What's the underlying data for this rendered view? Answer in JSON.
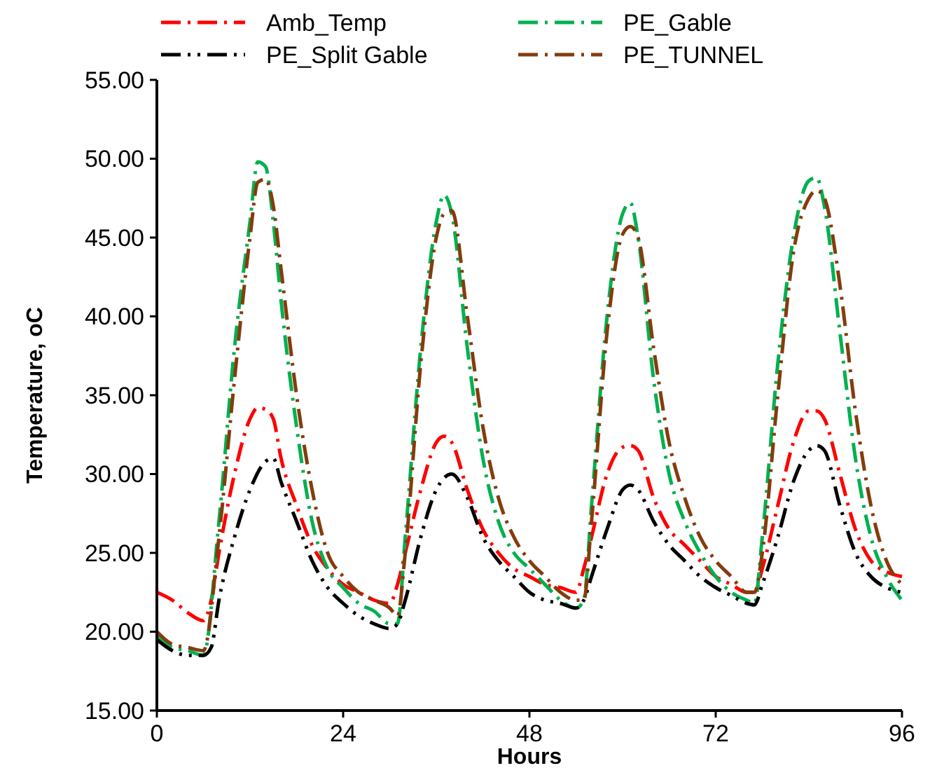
{
  "chart_data": {
    "type": "line",
    "xlabel": "Hours",
    "ylabel": "Temperature, oC",
    "xlim": [
      0,
      96
    ],
    "xticks": [
      0,
      24,
      48,
      72,
      96
    ],
    "ylim": [
      15,
      55
    ],
    "yticks": [
      {
        "value": 15,
        "label": "15.00"
      },
      {
        "value": 20,
        "label": "20.00"
      },
      {
        "value": 25,
        "label": "25.00"
      },
      {
        "value": 30,
        "label": "30.00"
      },
      {
        "value": 35,
        "label": "35.00"
      },
      {
        "value": 40,
        "label": "40.00"
      },
      {
        "value": 45,
        "label": "45.00"
      },
      {
        "value": 50,
        "label": "50.00"
      },
      {
        "value": 55,
        "label": "55.00"
      }
    ],
    "grid": false,
    "legend": "top",
    "marker": "none",
    "line_style": "dashed",
    "series": [
      {
        "name": "Amb_Temp",
        "color": "#ff0000",
        "x": [
          0,
          2,
          4,
          6,
          7,
          8,
          10,
          12,
          13,
          14,
          15,
          16,
          18,
          20,
          22,
          24,
          26,
          28,
          30,
          31,
          32,
          34,
          36,
          37,
          38,
          40,
          42,
          44,
          46,
          48,
          50,
          52,
          54,
          55,
          56,
          58,
          60,
          61,
          62,
          64,
          66,
          68,
          70,
          72,
          74,
          76,
          77,
          78,
          80,
          82,
          84,
          85,
          86,
          88,
          90,
          92,
          94,
          96
        ],
        "values": [
          22.5,
          22,
          21.2,
          20.7,
          22,
          25,
          30,
          33.5,
          34.2,
          34.1,
          33.5,
          31,
          28,
          25.5,
          24,
          23,
          22.5,
          22,
          21.8,
          23,
          25,
          29,
          32,
          32.4,
          32,
          29,
          26.5,
          25,
          24,
          23.5,
          23,
          22.8,
          22.5,
          24,
          26,
          30,
          31.7,
          31.8,
          31.5,
          28.5,
          26.5,
          25.5,
          24.5,
          23.5,
          23,
          22.5,
          22.5,
          24,
          28,
          32,
          34,
          34,
          33.5,
          30,
          26.5,
          24.5,
          23.8,
          23.5
        ]
      },
      {
        "name": "PE_Gable",
        "color": "#00b050",
        "x": [
          0,
          2,
          4,
          6,
          8,
          10,
          12,
          13,
          14,
          15,
          16,
          18,
          20,
          22,
          24,
          26,
          28,
          30,
          31,
          32,
          34,
          36,
          37,
          38,
          40,
          42,
          44,
          46,
          48,
          50,
          52,
          54,
          55,
          56,
          58,
          60,
          61,
          62,
          64,
          66,
          68,
          70,
          72,
          74,
          76,
          77,
          78,
          80,
          82,
          84,
          85,
          86,
          88,
          90,
          92,
          94,
          96
        ],
        "values": [
          19.8,
          19,
          18.8,
          18.5,
          27,
          38,
          46,
          49.8,
          49.5,
          46,
          41,
          33,
          27,
          24,
          22.8,
          21.8,
          21.3,
          20.5,
          20.5,
          26,
          38,
          46,
          47.7,
          46.5,
          38,
          31,
          27,
          25,
          24,
          23,
          22,
          21.5,
          22,
          28,
          40,
          46.5,
          47.2,
          45,
          36,
          30,
          27,
          25,
          23.5,
          22.5,
          22,
          21.8,
          26,
          37,
          45,
          48.6,
          48.8,
          47,
          39,
          31,
          26,
          23.5,
          22
        ]
      },
      {
        "name": "PE_Split Gable",
        "color": "#000000",
        "x": [
          0,
          2,
          4,
          6,
          7,
          8,
          10,
          12,
          14,
          15,
          16,
          18,
          20,
          22,
          24,
          26,
          28,
          30,
          31,
          32,
          34,
          36,
          38,
          40,
          42,
          44,
          46,
          48,
          50,
          52,
          54,
          55,
          56,
          58,
          60,
          61,
          62,
          64,
          66,
          68,
          70,
          72,
          74,
          76,
          77,
          78,
          80,
          82,
          84,
          85,
          86,
          88,
          90,
          92,
          94,
          96
        ],
        "values": [
          19.5,
          18.8,
          18.5,
          18.5,
          19,
          22,
          26,
          29,
          30.8,
          31,
          29.5,
          27,
          24.5,
          22.8,
          21.8,
          21,
          20.5,
          20.2,
          20.5,
          22,
          26,
          29,
          30,
          28.5,
          26,
          24.5,
          23.5,
          22.5,
          22,
          21.8,
          21.5,
          22,
          23.5,
          26.5,
          29,
          29.3,
          29,
          27,
          25.5,
          24.5,
          23.5,
          22.8,
          22.3,
          21.8,
          21.7,
          23,
          26,
          29.5,
          31.5,
          31.8,
          31.5,
          28,
          25,
          23.5,
          22.8,
          22.5
        ]
      },
      {
        "name": "PE_TUNNEL",
        "color": "#843c0c",
        "x": [
          0,
          2,
          4,
          6,
          8,
          10,
          12,
          13,
          14,
          15,
          16,
          18,
          20,
          22,
          24,
          26,
          28,
          30,
          31,
          32,
          34,
          36,
          37,
          38,
          40,
          42,
          44,
          46,
          48,
          50,
          52,
          54,
          55,
          56,
          58,
          60,
          61,
          62,
          64,
          66,
          68,
          70,
          72,
          74,
          76,
          77,
          78,
          80,
          82,
          84,
          85,
          86,
          88,
          90,
          92,
          94,
          96
        ],
        "values": [
          20,
          19.2,
          19,
          18.8,
          26,
          36,
          45,
          48.5,
          48.7,
          47,
          43,
          35,
          29,
          25,
          23.5,
          22.5,
          22,
          21.5,
          21,
          25,
          37,
          45,
          46.5,
          46.7,
          40,
          33,
          28.5,
          26,
          24.5,
          23.5,
          22.5,
          22,
          22,
          27,
          39,
          45.2,
          45.7,
          45,
          38,
          32,
          28.5,
          26,
          24.5,
          23.5,
          22.5,
          22.5,
          25,
          35,
          44,
          47.5,
          48,
          47.5,
          42,
          34,
          28,
          24.5,
          23
        ]
      }
    ]
  }
}
